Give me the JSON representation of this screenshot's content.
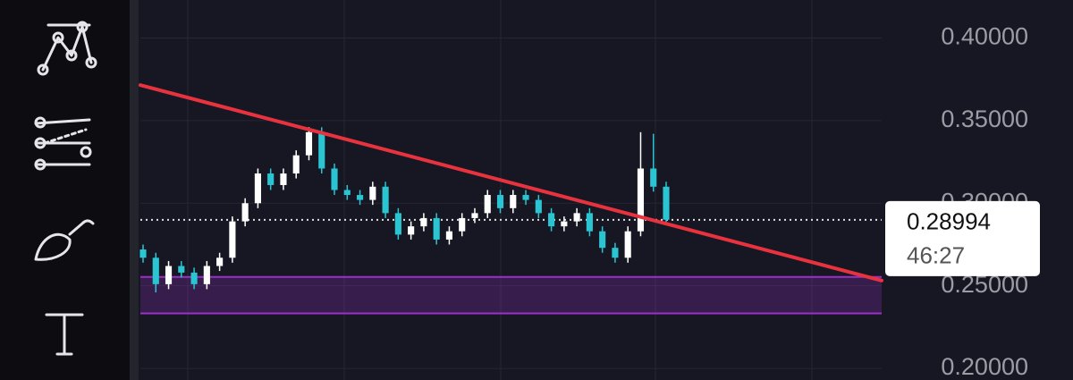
{
  "chart_data": {
    "type": "candlestick",
    "open": [
      0.272,
      0.267,
      0.251,
      0.262,
      0.258,
      0.251,
      0.262,
      0.267,
      0.289,
      0.3,
      0.318,
      0.311,
      0.318,
      0.329,
      0.343,
      0.321,
      0.308,
      0.305,
      0.302,
      0.31,
      0.294,
      0.281,
      0.286,
      0.291,
      0.278,
      0.283,
      0.291,
      0.294,
      0.305,
      0.297,
      0.305,
      0.302,
      0.294,
      0.286,
      0.289,
      0.294,
      0.283,
      0.273,
      0.267,
      0.283,
      0.321,
      0.31
    ],
    "high": [
      0.275,
      0.27,
      0.265,
      0.265,
      0.261,
      0.265,
      0.27,
      0.292,
      0.303,
      0.321,
      0.321,
      0.321,
      0.332,
      0.346,
      0.346,
      0.324,
      0.311,
      0.308,
      0.313,
      0.313,
      0.297,
      0.289,
      0.294,
      0.294,
      0.286,
      0.294,
      0.297,
      0.308,
      0.308,
      0.308,
      0.308,
      0.305,
      0.297,
      0.292,
      0.297,
      0.297,
      0.286,
      0.276,
      0.286,
      0.343,
      0.342,
      0.313
    ],
    "low": [
      0.264,
      0.246,
      0.248,
      0.255,
      0.248,
      0.248,
      0.259,
      0.264,
      0.286,
      0.297,
      0.308,
      0.308,
      0.315,
      0.326,
      0.318,
      0.305,
      0.302,
      0.299,
      0.299,
      0.291,
      0.278,
      0.278,
      0.283,
      0.275,
      0.275,
      0.28,
      0.288,
      0.291,
      0.294,
      0.294,
      0.299,
      0.291,
      0.283,
      0.283,
      0.286,
      0.28,
      0.27,
      0.264,
      0.264,
      0.28,
      0.307,
      0.287
    ],
    "close": [
      0.267,
      0.251,
      0.262,
      0.258,
      0.251,
      0.262,
      0.267,
      0.289,
      0.3,
      0.318,
      0.311,
      0.318,
      0.329,
      0.343,
      0.321,
      0.308,
      0.305,
      0.302,
      0.31,
      0.294,
      0.281,
      0.286,
      0.291,
      0.278,
      0.283,
      0.291,
      0.294,
      0.305,
      0.297,
      0.305,
      0.302,
      0.294,
      0.286,
      0.289,
      0.294,
      0.283,
      0.273,
      0.267,
      0.283,
      0.321,
      0.31,
      0.29
    ],
    "up_color": "#ffffff",
    "down_color": "#2bc4d2",
    "ylim": [
      0.193,
      0.423
    ],
    "yticks": [
      {
        "value": 0.2,
        "label": "0.20000"
      },
      {
        "value": 0.25,
        "label": "0.25000"
      },
      {
        "value": 0.3,
        "label": "0.30000"
      },
      {
        "value": 0.35,
        "label": "0.35000"
      },
      {
        "value": 0.4,
        "label": "0.40000"
      }
    ],
    "grid": true,
    "last_price": 0.28994,
    "countdown": "46:27",
    "trendline": {
      "start": 0.3715,
      "end": 0.2532,
      "color": "#e8333f"
    },
    "zone": {
      "low": 0.2333,
      "high": 0.2554,
      "color": "#9b30c8"
    }
  }
}
